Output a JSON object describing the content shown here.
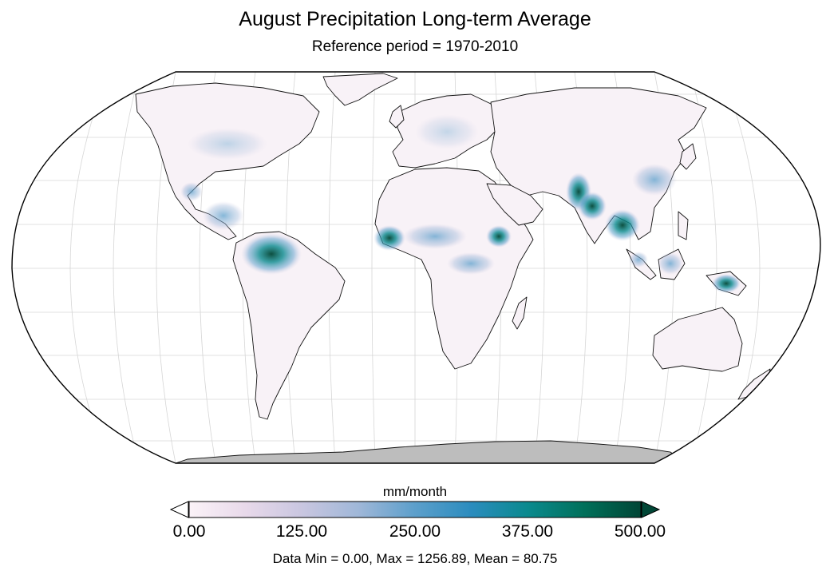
{
  "title": "August Precipitation Long-term Average",
  "subtitle": "Reference period = 1970-2010",
  "colorbar": {
    "units": "mm/month",
    "ticks": [
      "0.00",
      "125.00",
      "250.00",
      "375.00",
      "500.00"
    ],
    "range": [
      0,
      500
    ],
    "extend": "both",
    "colors": [
      "#fbf3f8",
      "#e8d9ea",
      "#c9c6e0",
      "#9fb7d8",
      "#5c9fcb",
      "#2b8cbe",
      "#0a8a8e",
      "#01705a",
      "#014636"
    ]
  },
  "stats": "Data Min = 0.00, Max = 1256.89, Mean = 80.75",
  "map": {
    "projection": "Robinson",
    "land_color": "#f8f2f7",
    "antarctica_color": "#bdbdbd",
    "wet_regions": [
      "Colombia / Amazon",
      "Central America",
      "West Africa coast",
      "Central Africa",
      "India west coast",
      "Bangladesh / Myanmar",
      "Southeast Asia",
      "New Guinea"
    ]
  }
}
